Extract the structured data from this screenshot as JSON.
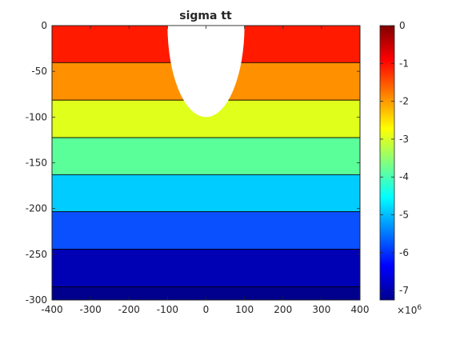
{
  "chart_data": {
    "type": "heatmap",
    "title": "sigma tt",
    "xlabel": "",
    "ylabel": "",
    "xlim": [
      -400,
      400
    ],
    "ylim": [
      -300,
      0
    ],
    "xticks": [
      -400,
      -300,
      -200,
      -100,
      0,
      100,
      200,
      300,
      400
    ],
    "yticks": [
      0,
      -50,
      -100,
      -150,
      -200,
      -250,
      -300
    ],
    "bands": [
      {
        "y_top": 0,
        "y_bottom": -40.5,
        "color": "#ff1a00"
      },
      {
        "y_top": -40.5,
        "y_bottom": -81.5,
        "color": "#ff9000"
      },
      {
        "y_top": -81.5,
        "y_bottom": -122.5,
        "color": "#e0ff1a"
      },
      {
        "y_top": -122.5,
        "y_bottom": -163,
        "color": "#5aff9a"
      },
      {
        "y_top": -163,
        "y_bottom": -203.5,
        "color": "#00ccff"
      },
      {
        "y_top": -203.5,
        "y_bottom": -244.5,
        "color": "#0a50ff"
      },
      {
        "y_top": -244.5,
        "y_bottom": -285.5,
        "color": "#0000b4"
      },
      {
        "y_top": -285.5,
        "y_bottom": -300,
        "color": "#00008c"
      }
    ],
    "cavity": {
      "shape": "half-ellipse",
      "x_center": 0,
      "half_width": 100,
      "depth": 100,
      "color": "#ffffff"
    },
    "colorbar": {
      "ticks": [
        0,
        -1,
        -2,
        -3,
        -4,
        -5,
        -6,
        -7
      ],
      "range": [
        -7.25,
        0
      ],
      "exponent_label": "×10",
      "exponent": "6",
      "colors": [
        "#00008f",
        "#0000ff",
        "#0080ff",
        "#00ffff",
        "#80ff80",
        "#ffff00",
        "#ff8000",
        "#ff0000",
        "#800000"
      ]
    },
    "grid": false
  }
}
